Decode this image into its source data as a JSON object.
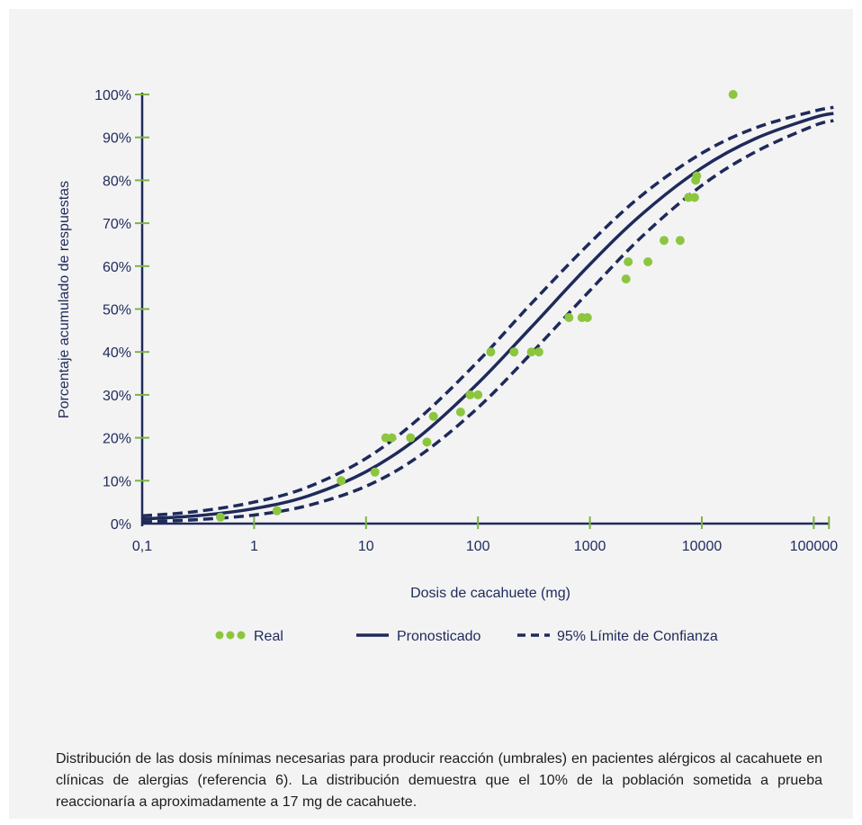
{
  "chart_data": {
    "type": "scatter",
    "title": "",
    "xlabel": "Dosis de cacahuete (mg)",
    "ylabel": "Porcentaje acumulado de respuestas",
    "x_scale": "log",
    "xlim": [
      0.1,
      150000
    ],
    "ylim": [
      0,
      100
    ],
    "x_ticks": [
      0.1,
      1,
      10,
      100,
      1000,
      10000,
      100000
    ],
    "x_tick_labels": [
      "0,1",
      "1",
      "10",
      "100",
      "1000",
      "10000",
      "100000"
    ],
    "y_ticks": [
      0,
      10,
      20,
      30,
      40,
      50,
      60,
      70,
      80,
      90,
      100
    ],
    "y_tick_labels": [
      "0%",
      "10%",
      "20%",
      "30%",
      "40%",
      "50%",
      "60%",
      "70%",
      "80%",
      "90%",
      "100%"
    ],
    "grid": false,
    "legend_position": "bottom",
    "series": [
      {
        "name": "Real",
        "kind": "points",
        "color": "#8cc63f",
        "points": [
          [
            0.5,
            1.5
          ],
          [
            1.6,
            3
          ],
          [
            6,
            10
          ],
          [
            12,
            12
          ],
          [
            15,
            20
          ],
          [
            17,
            20
          ],
          [
            25,
            20
          ],
          [
            35,
            19
          ],
          [
            40,
            25
          ],
          [
            70,
            26
          ],
          [
            85,
            30
          ],
          [
            100,
            30
          ],
          [
            130,
            40
          ],
          [
            210,
            40
          ],
          [
            300,
            40
          ],
          [
            350,
            40
          ],
          [
            650,
            48
          ],
          [
            850,
            48
          ],
          [
            950,
            48
          ],
          [
            2100,
            57
          ],
          [
            2200,
            61
          ],
          [
            3300,
            61
          ],
          [
            4600,
            66
          ],
          [
            6400,
            66
          ],
          [
            7600,
            76
          ],
          [
            8600,
            76
          ],
          [
            8800,
            80
          ],
          [
            9000,
            81
          ],
          [
            19000,
            100
          ]
        ]
      },
      {
        "name": "Pronosticado",
        "kind": "line",
        "style": "solid",
        "color": "#1e2a5a",
        "x": [
          0.1,
          0.3,
          1,
          3,
          10,
          30,
          100,
          300,
          1000,
          3000,
          10000,
          30000,
          100000,
          150000
        ],
        "values": [
          1.1,
          1.8,
          3.5,
          6.4,
          12.1,
          20.3,
          32.7,
          45.8,
          60.4,
          72.4,
          82.9,
          89.7,
          94.6,
          95.6
        ]
      },
      {
        "name": "95% Límite de Confianza",
        "kind": "line",
        "style": "dashed",
        "color": "#1e2a5a",
        "x": [
          0.1,
          0.3,
          1,
          3,
          10,
          30,
          100,
          300,
          1000,
          3000,
          10000,
          30000,
          100000,
          150000
        ],
        "values": [
          1.8,
          2.8,
          5.0,
          8.5,
          15.2,
          24.6,
          37.8,
          51.3,
          65.4,
          76.8,
          86.3,
          92.2,
          96.1,
          97.0
        ]
      },
      {
        "name": "95% Límite de Confianza",
        "kind": "line",
        "style": "dashed",
        "color": "#1e2a5a",
        "x": [
          0.1,
          0.3,
          1,
          3,
          10,
          30,
          100,
          300,
          1000,
          3000,
          10000,
          30000,
          100000,
          150000
        ],
        "values": [
          0.4,
          0.9,
          2.0,
          4.2,
          8.7,
          15.8,
          27.0,
          39.7,
          54.3,
          67.2,
          78.8,
          86.6,
          92.7,
          93.9
        ]
      }
    ]
  },
  "legend": {
    "real_label": "Real",
    "predicted_label": "Pronosticado",
    "confidence_label": "95% Límite de Confianza"
  },
  "caption": {
    "text": "Distribución de las dosis mínimas necesarias para producir reacción (umbrales) en pacientes alérgicos al cacahuete en clínicas de alergias (referencia 6). La distribución demuestra que el 10% de la población sometida a prueba reaccionaría a aproximadamente a 17 mg de cacahuete."
  },
  "colors": {
    "axis": "#1e2a5a",
    "tick": "#7cb342",
    "point": "#8cc63f",
    "panel_background": "#f3f3f4"
  }
}
